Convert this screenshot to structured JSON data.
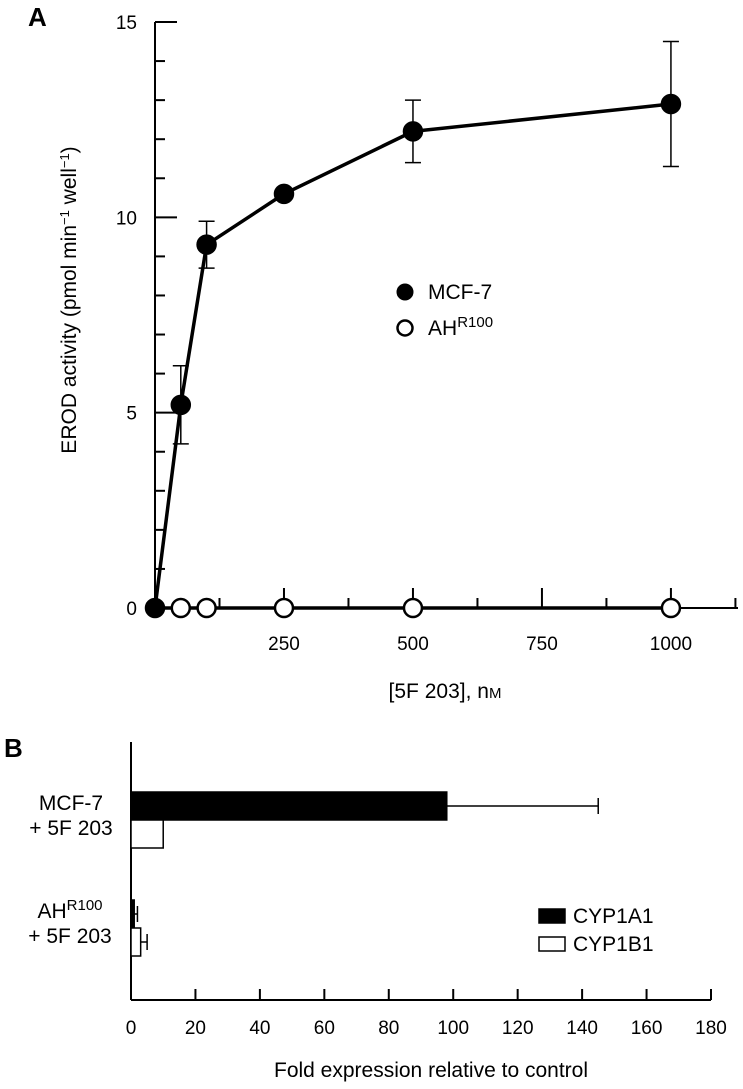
{
  "chart_data": [
    {
      "panel": "A",
      "type": "line",
      "xlabel": "[5F 203], nM",
      "xlabel_main": "[5F 203], n",
      "xlabel_unit": "M",
      "ylabel": "EROD activity (pmol min−1 well−1)",
      "ylabel_parts": [
        "EROD activity (pmol min",
        "−1",
        " well",
        "−1",
        ")"
      ],
      "xlim": [
        0,
        1130
      ],
      "ylim": [
        0,
        15
      ],
      "x_ticks": [
        250,
        500,
        750,
        1000
      ],
      "x_tick_labels": [
        "250",
        "500",
        "750",
        "1000"
      ],
      "y_ticks": [
        0,
        5,
        10,
        15
      ],
      "y_tick_labels": [
        "0",
        "5",
        "10",
        "15"
      ],
      "legend": {
        "placement": "center-right"
      },
      "series": [
        {
          "name": "MCF-7",
          "marker": "filled-circle",
          "x": [
            0,
            50,
            100,
            250,
            500,
            1000
          ],
          "y": [
            0,
            5.2,
            9.3,
            10.6,
            12.2,
            12.9
          ],
          "error": [
            0,
            1.0,
            0.6,
            0,
            0.8,
            1.6
          ]
        },
        {
          "name": "AH",
          "name_sup": "R100",
          "marker": "open-circle",
          "x": [
            0,
            50,
            100,
            250,
            500,
            1000
          ],
          "y": [
            0,
            0,
            0,
            0,
            0,
            0
          ],
          "error": [
            0,
            0,
            0,
            0,
            0,
            0
          ]
        }
      ]
    },
    {
      "panel": "B",
      "type": "bar",
      "orientation": "horizontal",
      "xlabel": "Fold expression relative to control",
      "xlim": [
        0,
        180
      ],
      "x_ticks": [
        0,
        20,
        40,
        60,
        80,
        100,
        120,
        140,
        160,
        180
      ],
      "x_tick_labels": [
        "0",
        "20",
        "40",
        "60",
        "80",
        "100",
        "120",
        "140",
        "160",
        "180"
      ],
      "categories": [
        {
          "line1": "MCF-7",
          "line1_sup": "",
          "line2": "+ 5F 203"
        },
        {
          "line1": "AH",
          "line1_sup": "R100",
          "line2": "+ 5F 203"
        }
      ],
      "legend": {
        "placement": "bottom-right"
      },
      "series": [
        {
          "name": "CYP1A1",
          "fill": "#000000",
          "values": [
            98,
            1
          ],
          "error": [
            47,
            1
          ]
        },
        {
          "name": "CYP1B1",
          "fill": "#ffffff",
          "values": [
            10,
            3
          ],
          "error": [
            0,
            2
          ]
        }
      ]
    }
  ],
  "panels": {
    "a_label": "A",
    "b_label": "B"
  }
}
